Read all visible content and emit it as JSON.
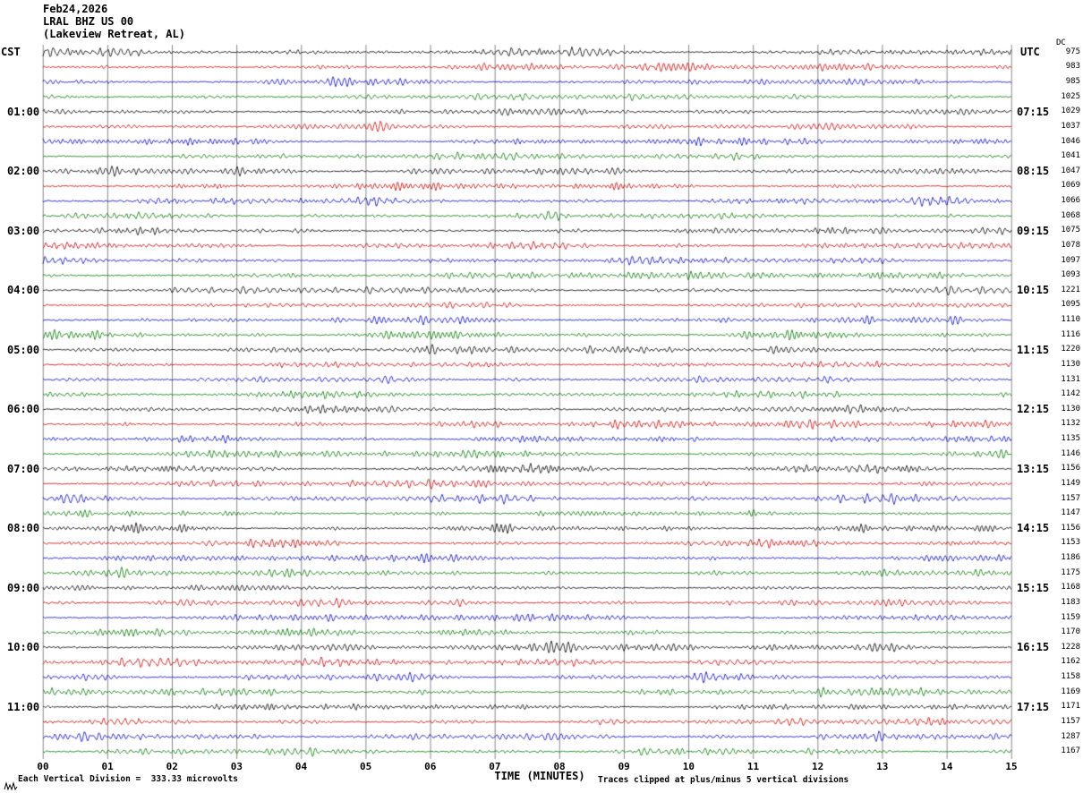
{
  "header": {
    "date": "Feb24,2026",
    "station": "LRAL BHZ US 00",
    "location": "(Lakeview Retreat, AL)"
  },
  "axes": {
    "left_tz": "CST",
    "right_tz": "UTC",
    "dc_header": "DC",
    "x_title": "TIME (MINUTES)",
    "x_ticks": [
      "00",
      "01",
      "02",
      "03",
      "04",
      "05",
      "06",
      "07",
      "08",
      "09",
      "10",
      "11",
      "12",
      "13",
      "14",
      "15"
    ]
  },
  "footer": {
    "scale_note": "Each Vertical Division =  333.33 microvolts",
    "clip_note": "Traces clipped at plus/minus 5 vertical divisions"
  },
  "chart_data": {
    "type": "line",
    "title": "LRAL BHZ US 00 (Lakeview Retreat, AL) heliplot Feb24,2026",
    "xlabel": "TIME (MINUTES)",
    "x_range_minutes": [
      0,
      15
    ],
    "minutes_per_row": 15,
    "microvolts_per_division": 333.33,
    "clip_divisions": 5,
    "trace_color_cycle": [
      "#000000",
      "#cc0000",
      "#0000cc",
      "#007700"
    ],
    "noise_seed": 20260224,
    "rows": [
      {
        "dc": 975
      },
      {
        "dc": 983
      },
      {
        "dc": 985
      },
      {
        "dc": 1025
      },
      {
        "cst": "01:00",
        "utc": "07:15",
        "dc": 1029
      },
      {
        "dc": 1037
      },
      {
        "dc": 1046
      },
      {
        "dc": 1041
      },
      {
        "cst": "02:00",
        "utc": "08:15",
        "dc": 1047
      },
      {
        "dc": 1069
      },
      {
        "dc": 1066
      },
      {
        "dc": 1068
      },
      {
        "cst": "03:00",
        "utc": "09:15",
        "dc": 1075
      },
      {
        "dc": 1078
      },
      {
        "dc": 1097
      },
      {
        "dc": 1093
      },
      {
        "cst": "04:00",
        "utc": "10:15",
        "dc": 1221
      },
      {
        "dc": 1095
      },
      {
        "dc": 1110
      },
      {
        "dc": 1116
      },
      {
        "cst": "05:00",
        "utc": "11:15",
        "dc": 1220
      },
      {
        "dc": 1130
      },
      {
        "dc": 1131
      },
      {
        "dc": 1142
      },
      {
        "cst": "06:00",
        "utc": "12:15",
        "dc": 1130
      },
      {
        "dc": 1132
      },
      {
        "dc": 1135
      },
      {
        "dc": 1146
      },
      {
        "cst": "07:00",
        "utc": "13:15",
        "dc": 1156
      },
      {
        "dc": 1149
      },
      {
        "dc": 1157
      },
      {
        "dc": 1147
      },
      {
        "cst": "08:00",
        "utc": "14:15",
        "dc": 1156
      },
      {
        "dc": 1153
      },
      {
        "dc": 1186
      },
      {
        "dc": 1175
      },
      {
        "cst": "09:00",
        "utc": "15:15",
        "dc": 1168
      },
      {
        "dc": 1183
      },
      {
        "dc": 1159
      },
      {
        "dc": 1170
      },
      {
        "cst": "10:00",
        "utc": "16:15",
        "dc": 1228
      },
      {
        "dc": 1162
      },
      {
        "dc": 1158
      },
      {
        "dc": 1169
      },
      {
        "cst": "11:00",
        "utc": "17:15",
        "dc": 1171
      },
      {
        "dc": 1157
      },
      {
        "dc": 1287
      },
      {
        "dc": 1167
      }
    ]
  }
}
